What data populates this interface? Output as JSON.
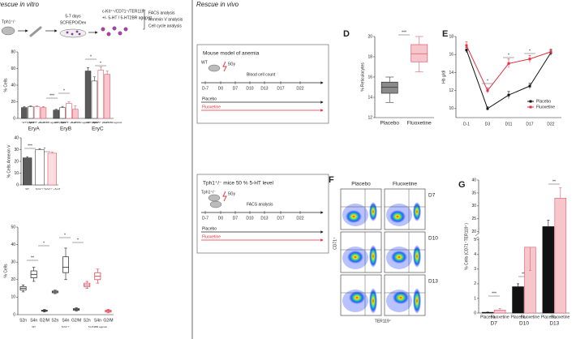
{
  "header": {
    "left": "Rescue in vitro",
    "right": "Rescue in vivo"
  },
  "workflow": {
    "mouse": "Tph1⁺/⁻",
    "duration": "5-7 days",
    "medium": "SCF/EPO/Dex",
    "population": "c-Kit⁺⁺/CD71⁺/TER119⁻",
    "treatment": "+/- 5-HT / 5-HT2BR agonist",
    "analyses": [
      "FACS analysis",
      "Annexin V analysis",
      "Cell cycle analysis"
    ]
  },
  "schemes": [
    {
      "title": "Mouse model of anemia",
      "mouse": "WT",
      "dose": "5Gy",
      "event": "Blood cell count",
      "timeline": [
        "D-7",
        "D0",
        "D7",
        "D10",
        "D13",
        "D17",
        "D22"
      ],
      "arms": [
        "Placebo",
        "Fluoxetine"
      ]
    },
    {
      "title": "Tph1⁺/⁻ mice 50 % 5-HT level",
      "mouse": "Tph1⁺/⁻",
      "dose": "5Gy",
      "event": "FACS analysis",
      "timeline": [
        "D-7",
        "D0",
        "D7",
        "D10",
        "D13",
        "D17",
        "D22"
      ],
      "arms": [
        "Placebo",
        "Fluoxetine"
      ]
    }
  ],
  "panel_labels": [
    "D",
    "E",
    "F",
    "G"
  ],
  "flow": {
    "columns": [
      "Placebo",
      "Fluoxetine"
    ],
    "rows": [
      "D7",
      "D10",
      "D13"
    ],
    "y_label": "CD71⁺",
    "x_label": "TER119⁺"
  },
  "chart_data": [
    {
      "type": "bar",
      "ylabel": "% Cells",
      "categories": [
        "EryA",
        "EryB",
        "EryC"
      ],
      "ylim": [
        0,
        80
      ],
      "yticks": [
        0,
        20,
        40,
        60,
        80
      ],
      "series": [
        {
          "name": "WT",
          "color": "#5b5b5b",
          "edge": "#333333",
          "values": [
            13,
            10,
            57
          ],
          "errors": [
            1,
            1,
            4
          ]
        },
        {
          "name": "Tph1⁺/⁻",
          "color": "#ffffff",
          "edge": "#444444",
          "values": [
            14,
            13,
            45
          ],
          "errors": [
            1,
            1.5,
            5
          ]
        },
        {
          "name": "Tph1⁺/⁻ +5-HT",
          "color": "#ffffff",
          "edge": "#e05a6a",
          "values": [
            14,
            18,
            58
          ],
          "errors": [
            1,
            2,
            4
          ]
        },
        {
          "name": "Tph1⁺/⁻ +5-HT2BR agonist",
          "color": "#f6c6cc",
          "edge": "#e05a6a",
          "values": [
            13,
            11,
            53
          ],
          "errors": [
            1,
            4,
            4
          ]
        }
      ],
      "annotations": [
        "***",
        "*",
        "*",
        "*"
      ]
    },
    {
      "type": "bar",
      "ylabel": "% Cells Annexin V",
      "categories": [
        "WT",
        "Tph1⁺/⁻",
        "Tph1⁺/⁻ +5-HT"
      ],
      "values": [
        23,
        30,
        27
      ],
      "errors": [
        1,
        0.8,
        0.8
      ],
      "colors": [
        "#5b5b5b",
        "#ffffff",
        "#f9dde0"
      ],
      "edges": [
        "#333333",
        "#444444",
        "#e05a6a"
      ],
      "ylim": [
        0,
        40
      ],
      "yticks": [
        0,
        10,
        20,
        30,
        40
      ],
      "annotations": [
        "***",
        "*"
      ]
    },
    {
      "type": "box",
      "ylabel": "% Cells",
      "categories": [
        "S2n",
        "S4n",
        "G2/M"
      ],
      "ylim": [
        0,
        50
      ],
      "yticks": [
        0,
        10,
        20,
        30,
        40,
        50
      ],
      "series": [
        {
          "name": "WT",
          "color": "#222222",
          "values": [
            [
              13,
              14,
              15,
              16,
              17
            ],
            [
              19,
              21,
              23,
              25,
              27
            ],
            [
              1.5,
              2,
              2.2,
              2.5,
              3
            ]
          ]
        },
        {
          "name": "Tph1⁺/⁻",
          "color": "#222222",
          "values": [
            [
              12,
              12.5,
              13,
              13.5,
              14
            ],
            [
              20,
              24,
              27,
              33,
              38
            ],
            [
              2,
              2.5,
              3,
              3.5,
              4
            ]
          ]
        },
        {
          "name": "5-HT2BR agonist",
          "color": "#e0303f",
          "values": [
            [
              15,
              16,
              17,
              18,
              19
            ],
            [
              18,
              20,
              22,
              24,
              26
            ],
            [
              1,
              1.5,
              2,
              2.5,
              3
            ]
          ]
        }
      ],
      "annotations": [
        "**",
        "*",
        "*",
        "*"
      ]
    },
    {
      "type": "box",
      "ylabel": "% Reticulocytes",
      "categories": [
        "Placebo",
        "Fluoxetine"
      ],
      "values": [
        [
          13.5,
          14.4,
          15,
          15.5,
          16
        ],
        [
          16.5,
          17.5,
          18.3,
          19.2,
          20
        ]
      ],
      "colors": [
        "#8a8a8a",
        "#f6c6cc"
      ],
      "edges": [
        "#333333",
        "#e05a6a"
      ],
      "ylim": [
        12,
        20
      ],
      "yticks": [
        12,
        14,
        16,
        18,
        20
      ],
      "annotations": [
        "***"
      ]
    },
    {
      "type": "line",
      "ylabel": "Hb g/dl",
      "categories": [
        "D-1",
        "D3",
        "D11",
        "D17",
        "D22"
      ],
      "ylim": [
        9,
        18
      ],
      "yticks": [
        10,
        12,
        14,
        16,
        18
      ],
      "legend": "lower right",
      "series": [
        {
          "name": "Placebo",
          "color": "#111111",
          "values": [
            16.5,
            10,
            11.5,
            12.5,
            16.2
          ],
          "errors": [
            0.3,
            0.2,
            0.4,
            0.3,
            0.3
          ]
        },
        {
          "name": "Fluoxetine",
          "color": "#e0303f",
          "values": [
            17,
            12,
            15,
            15.5,
            16.3
          ],
          "errors": [
            0.4,
            0.3,
            0.5,
            0.4,
            0.3
          ]
        }
      ],
      "annotations": [
        "*",
        "*",
        "*"
      ]
    },
    {
      "type": "bar",
      "ylabel": "% Cells (CD71⁺TER119⁺)",
      "categories": [
        "D7",
        "D10",
        "D13"
      ],
      "ylim": [
        0,
        40
      ],
      "ybreak": [
        5,
        20
      ],
      "yticks": [
        0,
        1,
        2,
        3,
        4,
        5,
        20,
        25,
        30,
        35,
        40
      ],
      "series": [
        {
          "name": "Placebo",
          "color": "#111111",
          "edge": "#111111",
          "values": [
            0.05,
            1.8,
            22
          ],
          "errors": [
            0.02,
            0.2,
            2.5
          ]
        },
        {
          "name": "Fluoxetine",
          "color": "#f6c6cc",
          "edge": "#e05a6a",
          "values": [
            0.2,
            4.5,
            33
          ],
          "errors": [
            0.1,
            0.6,
            4
          ]
        }
      ],
      "annotations": [
        "***",
        "***",
        "**"
      ]
    }
  ]
}
